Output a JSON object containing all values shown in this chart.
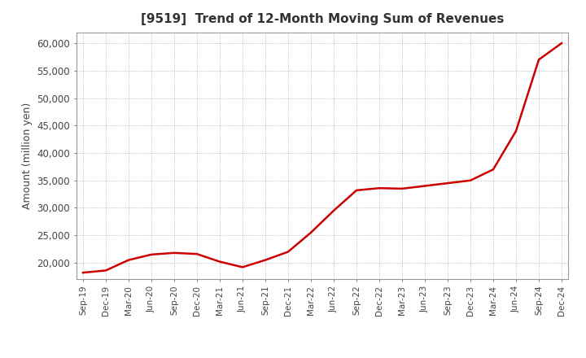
{
  "title": "[9519]  Trend of 12-Month Moving Sum of Revenues",
  "ylabel": "Amount (million yen)",
  "ylim": [
    17000,
    62000
  ],
  "yticks": [
    20000,
    25000,
    30000,
    35000,
    40000,
    45000,
    50000,
    55000,
    60000
  ],
  "line_color": "#cc0000",
  "background_color": "#ffffff",
  "grid_color": "#aaaaaa",
  "title_color": "#333333",
  "x_labels": [
    "Sep-19",
    "Dec-19",
    "Mar-20",
    "Jun-20",
    "Sep-20",
    "Dec-20",
    "Mar-21",
    "Jun-21",
    "Sep-21",
    "Dec-21",
    "Mar-22",
    "Jun-22",
    "Sep-22",
    "Dec-22",
    "Mar-23",
    "Jun-23",
    "Sep-23",
    "Dec-23",
    "Mar-24",
    "Jun-24",
    "Sep-24",
    "Dec-24"
  ],
  "values": [
    18200,
    18600,
    20500,
    21500,
    21800,
    21600,
    20200,
    19200,
    20500,
    22000,
    25500,
    29500,
    33200,
    33600,
    33500,
    34000,
    34500,
    35000,
    37000,
    44000,
    57000,
    60000
  ]
}
